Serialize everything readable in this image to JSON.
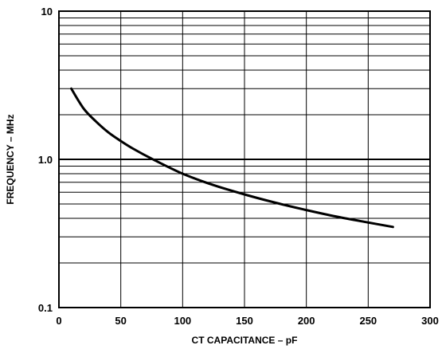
{
  "chart_data": {
    "type": "line",
    "title": "",
    "xlabel": "CT CAPACITANCE – pF",
    "ylabel": "FREQUENCY – MHz",
    "xlim": [
      0,
      300
    ],
    "ylim": [
      0.1,
      10
    ],
    "y_scale": "log",
    "grid": true,
    "x_ticks": [
      0,
      50,
      100,
      150,
      200,
      250,
      300
    ],
    "x_tick_labels": [
      "0",
      "50",
      "100",
      "150",
      "200",
      "250",
      "300"
    ],
    "y_ticks": [
      0.1,
      1.0,
      10
    ],
    "y_tick_labels": [
      "0.1",
      "1.0",
      "10"
    ],
    "series": [
      {
        "x": [
          10,
          20,
          30,
          40,
          50,
          60,
          75,
          100,
          125,
          150,
          175,
          200,
          225,
          250,
          270
        ],
        "y": [
          3.0,
          2.2,
          1.8,
          1.52,
          1.33,
          1.18,
          1.01,
          0.8,
          0.67,
          0.58,
          0.51,
          0.455,
          0.41,
          0.375,
          0.35
        ]
      }
    ]
  }
}
